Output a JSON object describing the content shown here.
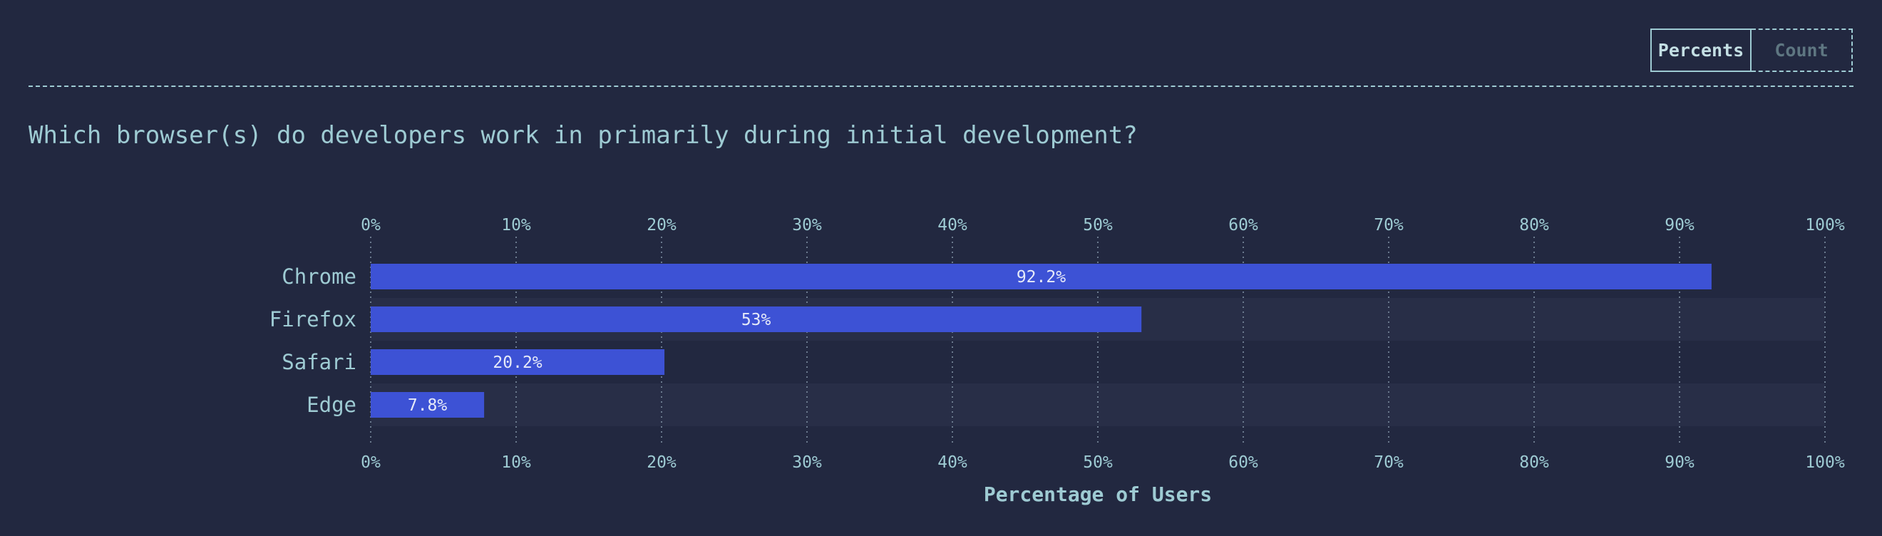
{
  "toggle": {
    "percents_label": "Percents",
    "count_label": "Count",
    "selected": "Percents"
  },
  "question": "Which browser(s) do developers work in primarily during initial development?",
  "chart_data": {
    "type": "bar",
    "orientation": "horizontal",
    "categories": [
      "Chrome",
      "Firefox",
      "Safari",
      "Edge"
    ],
    "values": [
      92.2,
      53,
      20.2,
      7.8
    ],
    "value_labels": [
      "92.2%",
      "53%",
      "20.2%",
      "7.8%"
    ],
    "title": "",
    "xlabel": "Percentage of Users",
    "ylabel": "",
    "xlim": [
      0,
      100
    ],
    "ticks": [
      0,
      10,
      20,
      30,
      40,
      50,
      60,
      70,
      80,
      90,
      100
    ],
    "tick_suffix": "%",
    "grid": true,
    "colors": {
      "bar": "#3d52d5",
      "grid": "#6b7a8e",
      "row_alt": "#282e47"
    }
  }
}
